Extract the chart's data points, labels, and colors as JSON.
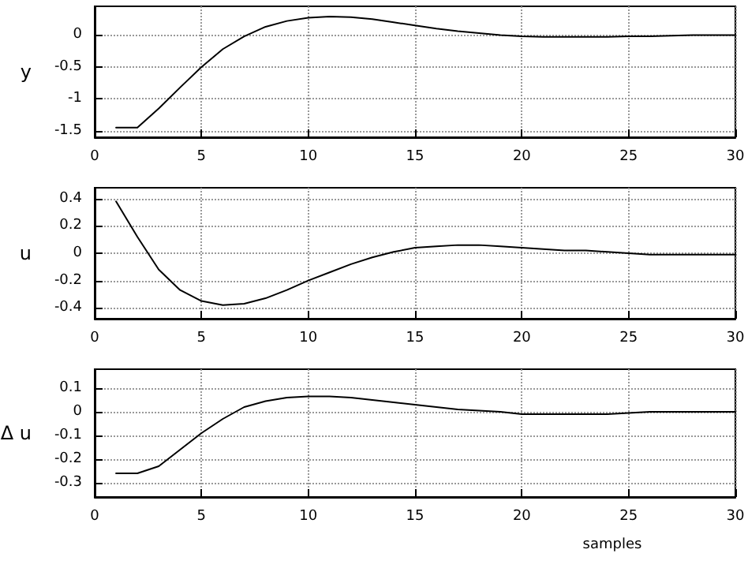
{
  "chart_data": [
    {
      "type": "line",
      "ylabel": "y",
      "x": [
        1,
        2,
        3,
        4,
        5,
        6,
        7,
        8,
        9,
        10,
        11,
        12,
        13,
        14,
        15,
        16,
        17,
        18,
        19,
        20,
        21,
        22,
        23,
        24,
        25,
        26,
        27,
        28,
        29,
        30
      ],
      "series": [
        {
          "color": "#000000",
          "values": [
            -1.45,
            -1.45,
            -1.15,
            -0.82,
            -0.5,
            -0.22,
            -0.02,
            0.13,
            0.22,
            0.27,
            0.29,
            0.28,
            0.25,
            0.2,
            0.15,
            0.1,
            0.06,
            0.03,
            0.0,
            -0.02,
            -0.03,
            -0.03,
            -0.03,
            -0.03,
            -0.02,
            -0.02,
            -0.01,
            0,
            0,
            0
          ]
        }
      ],
      "xlim": [
        0,
        30
      ],
      "xticks": [
        0,
        5,
        10,
        15,
        20,
        25,
        30
      ],
      "ylim": [
        -1.6,
        0.45
      ],
      "yticks": [
        -1.5,
        -1,
        -0.5,
        0
      ],
      "grid": true,
      "marker": "none",
      "line_style": "solid"
    },
    {
      "type": "line",
      "ylabel": "u",
      "x": [
        1,
        2,
        3,
        4,
        5,
        6,
        7,
        8,
        9,
        10,
        11,
        12,
        13,
        14,
        15,
        16,
        17,
        18,
        19,
        20,
        21,
        22,
        23,
        24,
        25,
        26,
        27,
        28,
        29,
        30
      ],
      "series": [
        {
          "color": "#000000",
          "values": [
            0.38,
            0.12,
            -0.12,
            -0.27,
            -0.35,
            -0.38,
            -0.37,
            -0.33,
            -0.27,
            -0.2,
            -0.14,
            -0.08,
            -0.03,
            0.01,
            0.04,
            0.05,
            0.06,
            0.06,
            0.05,
            0.04,
            0.03,
            0.02,
            0.02,
            0.01,
            0,
            -0.01,
            -0.01,
            -0.01,
            -0.01,
            -0.01
          ]
        }
      ],
      "xlim": [
        0,
        30
      ],
      "xticks": [
        0,
        5,
        10,
        15,
        20,
        25,
        30
      ],
      "ylim": [
        -0.48,
        0.48
      ],
      "yticks": [
        -0.4,
        -0.2,
        0,
        0.2,
        0.4
      ],
      "grid": true,
      "marker": "none",
      "line_style": "solid"
    },
    {
      "type": "line",
      "ylabel": "Δ u",
      "xlabel": "samples",
      "x": [
        1,
        2,
        3,
        4,
        5,
        6,
        7,
        8,
        9,
        10,
        11,
        12,
        13,
        14,
        15,
        16,
        17,
        18,
        19,
        20,
        21,
        22,
        23,
        24,
        25,
        26,
        27,
        28,
        29,
        30
      ],
      "series": [
        {
          "color": "#000000",
          "values": [
            -0.26,
            -0.26,
            -0.23,
            -0.16,
            -0.09,
            -0.03,
            0.02,
            0.045,
            0.06,
            0.065,
            0.065,
            0.06,
            0.05,
            0.04,
            0.03,
            0.02,
            0.01,
            0.005,
            0,
            -0.01,
            -0.01,
            -0.01,
            -0.01,
            -0.01,
            -0.005,
            0,
            0,
            0,
            0,
            0
          ]
        }
      ],
      "xlim": [
        0,
        30
      ],
      "xticks": [
        0,
        5,
        10,
        15,
        20,
        25,
        30
      ],
      "ylim": [
        -0.36,
        0.18
      ],
      "yticks": [
        -0.3,
        -0.2,
        -0.1,
        0,
        0.1
      ],
      "grid": true,
      "marker": "none",
      "line_style": "solid"
    }
  ]
}
